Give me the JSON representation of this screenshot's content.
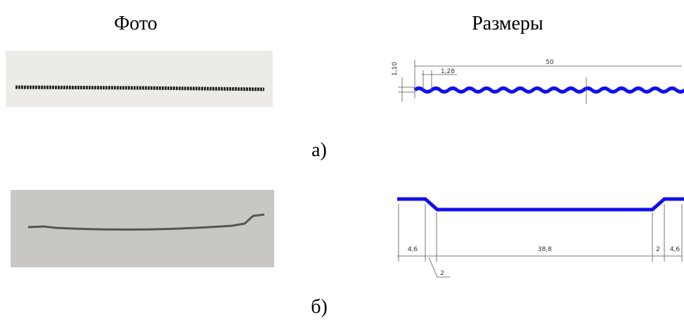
{
  "headers": {
    "photo": "Фото",
    "dimensions": "Размеры"
  },
  "panels": [
    {
      "label": "а)",
      "dimensions": [
        "1,10",
        "1,28",
        "50"
      ]
    },
    {
      "label": "б)",
      "dimensions": [
        "4,6",
        "38,8",
        "2",
        "4,6",
        "2"
      ]
    }
  ]
}
